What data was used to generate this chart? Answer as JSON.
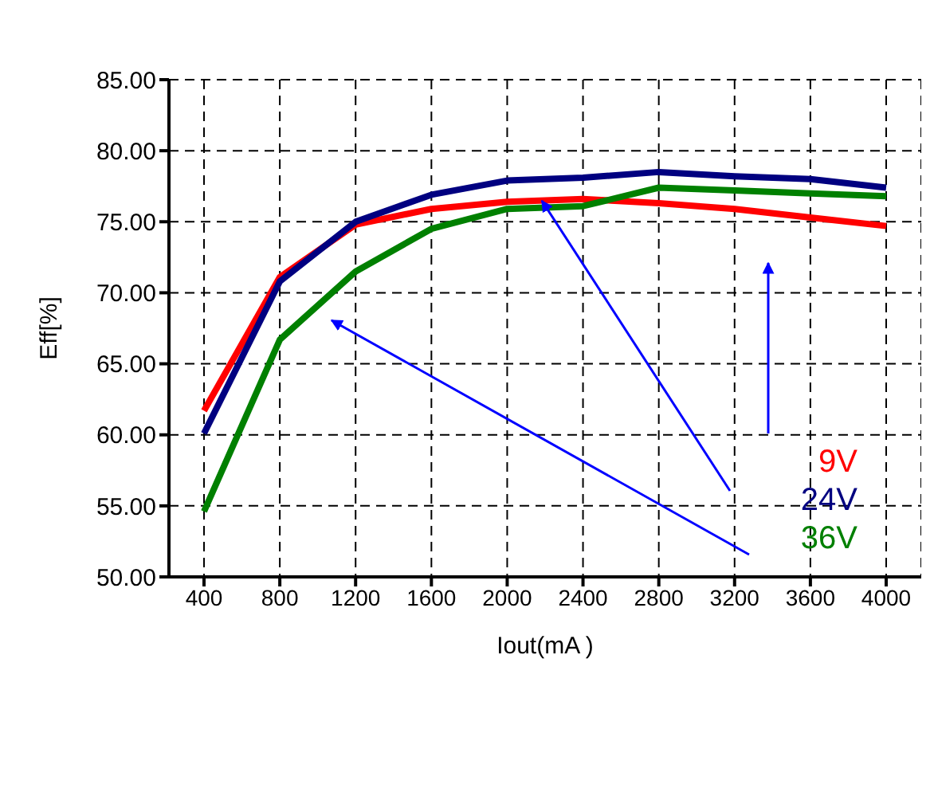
{
  "chart_data": {
    "type": "line",
    "xlabel": "Iout(mA )",
    "ylabel": "Eff[%]",
    "categories": [
      "400",
      "800",
      "1200",
      "1600",
      "2000",
      "2400",
      "2800",
      "3200",
      "3600",
      "4000"
    ],
    "series": [
      {
        "name": "9V",
        "color": "#ff0000",
        "values": [
          61.7,
          71.1,
          74.8,
          75.9,
          76.4,
          76.6,
          76.3,
          75.9,
          75.3,
          74.7
        ]
      },
      {
        "name": "24V",
        "color": "#000080",
        "values": [
          60.1,
          70.8,
          75.0,
          76.9,
          77.9,
          78.1,
          78.5,
          78.2,
          78.0,
          77.4
        ]
      },
      {
        "name": "36V",
        "color": "#008000",
        "values": [
          54.6,
          66.7,
          71.5,
          74.5,
          75.9,
          76.1,
          77.4,
          77.2,
          77.0,
          76.8
        ]
      }
    ],
    "ylim": [
      50,
      85
    ],
    "yticks": [
      {
        "value": 50,
        "label": "50.00"
      },
      {
        "value": 55,
        "label": "55.00"
      },
      {
        "value": 60,
        "label": "60.00"
      },
      {
        "value": 65,
        "label": "65.00"
      },
      {
        "value": 70,
        "label": "70.00"
      },
      {
        "value": 75,
        "label": "75.00"
      },
      {
        "value": 80,
        "label": "80.00"
      },
      {
        "value": 85,
        "label": "85.00"
      }
    ],
    "grid": true,
    "legend": "right",
    "marker": "none",
    "line_style": "solid"
  }
}
